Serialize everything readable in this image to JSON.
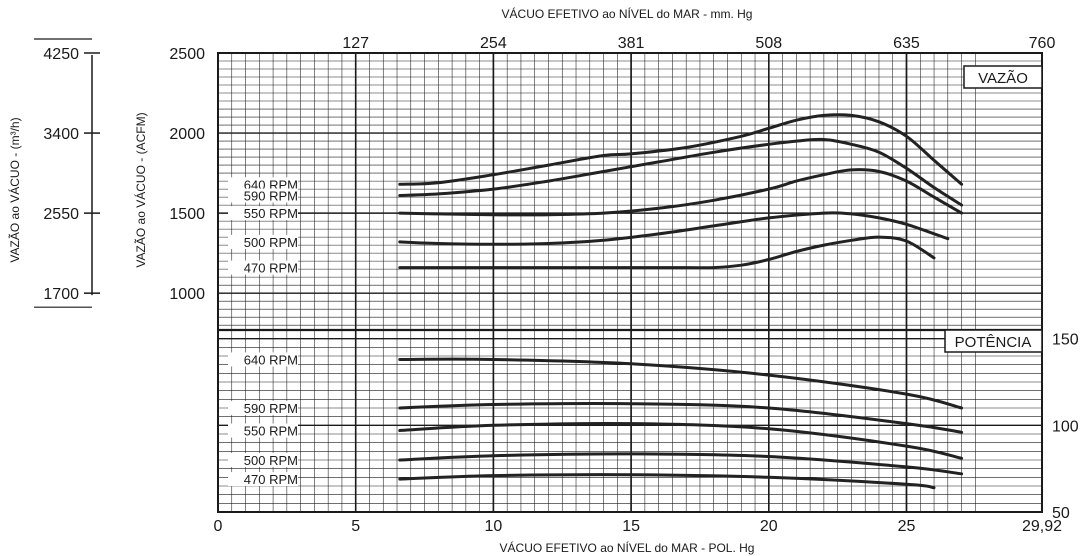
{
  "chart_data": {
    "type": "line",
    "x_bottom": {
      "label": "VÁCUO EFETIVO ao NÍVEL do MAR - POL. Hg",
      "range": [
        0,
        29.92
      ],
      "ticks": [
        0,
        5,
        10,
        15,
        20,
        25,
        29.92
      ],
      "tick_labels": [
        "0",
        "5",
        "10",
        "15",
        "20",
        "25",
        "29,92"
      ]
    },
    "x_top": {
      "label": "VÁCUO EFETIVO ao NÍVEL do MAR - mm. Hg",
      "range": [
        0,
        760
      ],
      "ticks": [
        127,
        254,
        381,
        508,
        635,
        760
      ],
      "tick_labels": [
        "127",
        "254",
        "381",
        "508",
        "635",
        "760"
      ]
    },
    "y_left": {
      "label": "VAZÃO ao VÁCUO - (ACFM)",
      "ticks": [
        1000,
        1500,
        2000,
        2500
      ],
      "tick_labels": [
        "1000",
        "1500",
        "2000",
        "2500"
      ]
    },
    "y_far_left": {
      "label": "VAZÃO ao VÁCUO - (m³/h)",
      "ticks": [
        1700,
        2550,
        3400,
        4250
      ],
      "tick_labels": [
        "1700",
        "2550",
        "3400",
        "4250"
      ]
    },
    "y_right": {
      "ticks": [
        50,
        100,
        150
      ],
      "tick_labels": [
        "50",
        "100",
        "150"
      ]
    },
    "panels": [
      {
        "name": "VAZÃO",
        "y_axis": "ACFM",
        "ylim": [
          770,
          2500
        ],
        "series": [
          {
            "name": "640 RPM",
            "x": [
              6.6,
              8,
              10,
              12,
              14,
              15,
              17,
              19,
              20,
              21,
              22,
              23,
              24,
              25,
              26,
              27
            ],
            "y": [
              1680,
              1690,
              1740,
              1800,
              1860,
              1870,
              1910,
              1980,
              2030,
              2080,
              2110,
              2110,
              2070,
              1980,
              1830,
              1680
            ]
          },
          {
            "name": "590 RPM",
            "x": [
              6.6,
              8,
              10,
              12,
              14,
              16,
              18,
              20,
              21,
              22,
              23,
              24,
              25,
              26,
              27
            ],
            "y": [
              1610,
              1620,
              1650,
              1700,
              1760,
              1820,
              1880,
              1930,
              1950,
              1960,
              1930,
              1880,
              1780,
              1660,
              1550
            ]
          },
          {
            "name": "550 RPM",
            "x": [
              6.6,
              8,
              10,
              12,
              14,
              16,
              18,
              20,
              21,
              22,
              23,
              24,
              25,
              26,
              27
            ],
            "y": [
              1500,
              1495,
              1490,
              1490,
              1500,
              1530,
              1580,
              1650,
              1700,
              1740,
              1770,
              1760,
              1700,
              1600,
              1500
            ]
          },
          {
            "name": "500 RPM",
            "x": [
              6.6,
              8,
              10,
              12,
              14,
              16,
              18,
              20,
              22,
              23,
              24,
              25,
              26.5
            ],
            "y": [
              1320,
              1310,
              1305,
              1310,
              1330,
              1370,
              1420,
              1470,
              1500,
              1495,
              1470,
              1430,
              1340
            ]
          },
          {
            "name": "470 RPM",
            "x": [
              6.6,
              10,
              15,
              17,
              18,
              19,
              20,
              21,
              22,
              23,
              24,
              25,
              26
            ],
            "y": [
              1160,
              1160,
              1160,
              1160,
              1160,
              1175,
              1210,
              1260,
              1300,
              1330,
              1350,
              1325,
              1220
            ]
          }
        ]
      },
      {
        "name": "POTÊNCIA",
        "y_axis": "right",
        "ylim": [
          50,
          155
        ],
        "series": [
          {
            "name": "640 RPM",
            "x": [
              6.6,
              10,
              15,
              20,
              25,
              27
            ],
            "y": [
              138,
              138,
              135.5,
              129,
              118,
              110
            ]
          },
          {
            "name": "590 RPM",
            "x": [
              6.6,
              10,
              15,
              20,
              25,
              27
            ],
            "y": [
              110,
              112,
              112.5,
              110,
              101,
              96
            ]
          },
          {
            "name": "550 RPM",
            "x": [
              6.6,
              10,
              15,
              20,
              25,
              27
            ],
            "y": [
              97,
              100,
              101,
              98,
              88,
              81
            ]
          },
          {
            "name": "500 RPM",
            "x": [
              6.6,
              10,
              15,
              20,
              25,
              27
            ],
            "y": [
              80,
              82.5,
              83.5,
              82,
              76,
              72
            ]
          },
          {
            "name": "470 RPM",
            "x": [
              6.6,
              10,
              15,
              20,
              25,
              26
            ],
            "y": [
              69,
              71,
              71.5,
              70,
              66,
              64
            ]
          }
        ]
      }
    ],
    "grid": true
  },
  "panel_labels": {
    "vazao": "VAZÃO",
    "potencia": "POTÊNCIA"
  },
  "rpm_labels": {
    "vazao": [
      "640 RPM",
      "590 RPM",
      "550 RPM",
      "500 RPM",
      "470 RPM"
    ],
    "potencia": [
      "640 RPM",
      "590 RPM",
      "550 RPM",
      "500 RPM",
      "470 RPM"
    ]
  }
}
